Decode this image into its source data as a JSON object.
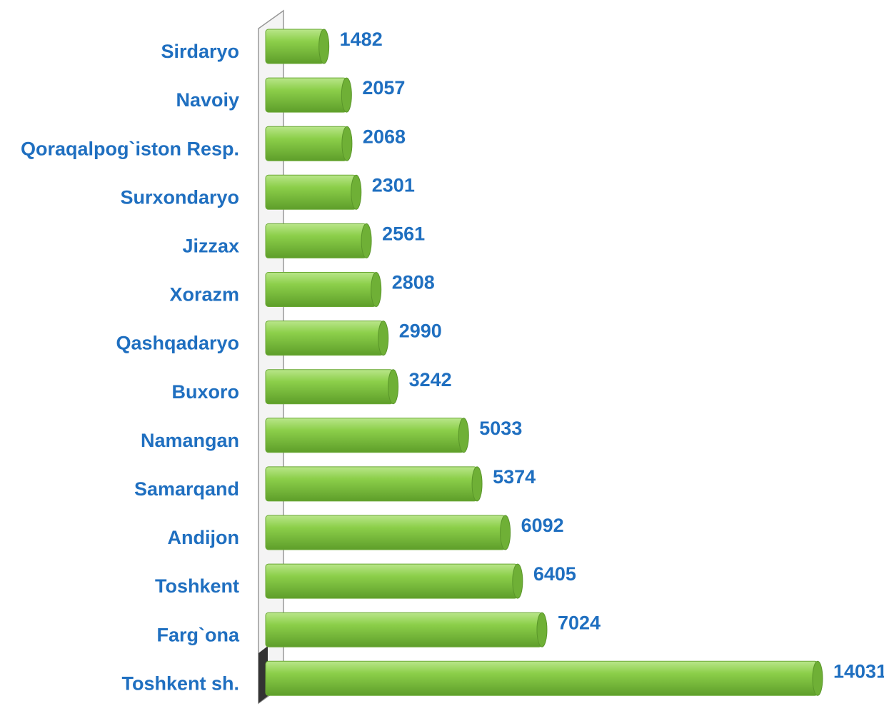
{
  "chart_data": {
    "type": "bar",
    "orientation": "horizontal",
    "categories": [
      "Sirdaryo",
      "Navoiy",
      "Qoraqalpog`iston Resp.",
      "Surxondaryo",
      "Jizzax",
      "Xorazm",
      "Qashqadaryo",
      "Buxoro",
      "Namangan",
      "Samarqand",
      "Andijon",
      "Toshkent",
      "Farg`ona",
      "Toshkent sh."
    ],
    "values": [
      1482,
      2057,
      2068,
      2301,
      2561,
      2808,
      2990,
      3242,
      5033,
      5374,
      6092,
      6405,
      7024,
      14031
    ],
    "color": "#8ccf4a",
    "label_color": "#1f6fc0"
  }
}
